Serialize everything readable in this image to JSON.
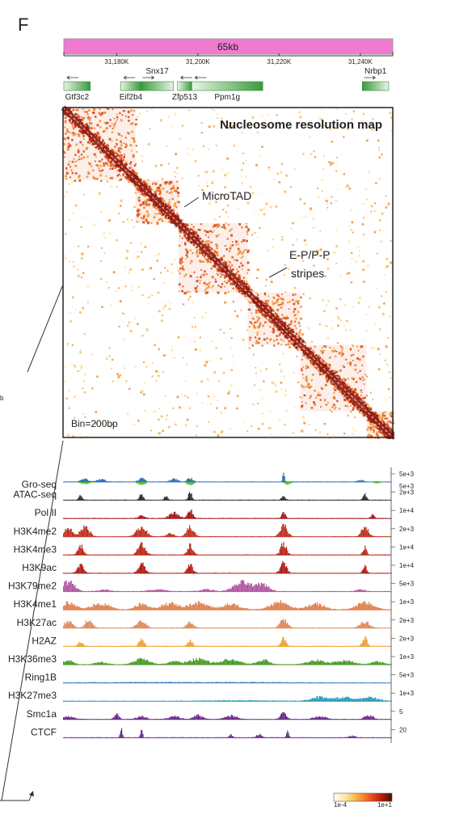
{
  "panel_label": "F",
  "scale_bar": {
    "label": "65kb",
    "color": "#f07ad0"
  },
  "coordinates": {
    "ticks": [
      {
        "label": "31,180K",
        "value": 31180
      },
      {
        "label": "31,200K",
        "value": 31200
      },
      {
        "label": "31,220K",
        "value": 31220
      },
      {
        "label": "31,240K",
        "value": 31240
      }
    ],
    "range_kb": [
      31167,
      31248
    ]
  },
  "genes": [
    {
      "name": "Gtf3c2",
      "start": 31167,
      "end": 31173.5,
      "strand": "-"
    },
    {
      "name": "Eif2b4",
      "start": 31181,
      "end": 31186,
      "strand": "-"
    },
    {
      "name": "Snx17",
      "start": 31186,
      "end": 31194,
      "strand": "+"
    },
    {
      "name": "Zfp513",
      "start": 31195,
      "end": 31198.5,
      "strand": "-"
    },
    {
      "name": "Ppm1g",
      "start": 31198.5,
      "end": 31216,
      "strand": "-"
    },
    {
      "name": "Nrbp1",
      "start": 31240.5,
      "end": 31247,
      "strand": "+"
    }
  ],
  "heatmap": {
    "title": "Nucleosome resolution map",
    "bin_label": "Bin=200bp",
    "annotations": [
      {
        "text": "MicroTAD"
      },
      {
        "text": "E-P/P-P"
      },
      {
        "text": "stripes"
      }
    ],
    "side_label": "b",
    "colorbar": {
      "min_label": "1e-4",
      "max_label": "1e+1",
      "colors": [
        "#ffffff",
        "#fde8a0",
        "#f9b040",
        "#f06020",
        "#c02010",
        "#4a0808"
      ]
    }
  },
  "chart_data": {
    "type": "area",
    "x_range_kb": [
      31167,
      31248
    ],
    "tracks": [
      {
        "name": "Gro-seq",
        "scale": "5e+3",
        "scale2": "5e+3",
        "color": "#2a6ab8",
        "color2": "#4cb83a",
        "peaks": [
          [
            31172,
            0.25,
            1.2
          ],
          [
            31176,
            0.2,
            1.5
          ],
          [
            31186,
            0.3,
            1.0
          ],
          [
            31194,
            0.25,
            1.2
          ],
          [
            31198,
            0.3,
            1.0
          ],
          [
            31221,
            1.0,
            0.3
          ],
          [
            31240,
            0.15,
            1.0
          ]
        ],
        "neg_peaks": [
          [
            31172,
            0.35,
            1.5
          ],
          [
            31186,
            0.45,
            1.2
          ],
          [
            31198,
            0.55,
            1.0
          ],
          [
            31222,
            0.35,
            1.0
          ],
          [
            31244,
            0.2,
            1.0
          ]
        ]
      },
      {
        "name": "ATAC-seq",
        "scale": "2e+3",
        "color": "#2b2b35",
        "peaks": [
          [
            31171,
            0.35,
            0.6
          ],
          [
            31186,
            0.55,
            0.6
          ],
          [
            31192,
            0.3,
            0.6
          ],
          [
            31198,
            0.7,
            0.6
          ],
          [
            31221,
            0.4,
            0.6
          ],
          [
            31241,
            0.45,
            0.6
          ]
        ]
      },
      {
        "name": "Pol II",
        "scale": "1e+4",
        "color": "#a0181a",
        "peaks": [
          [
            31186,
            0.25,
            1.0
          ],
          [
            31194,
            0.5,
            1.5
          ],
          [
            31198,
            0.8,
            0.8
          ],
          [
            31221,
            0.5,
            0.6
          ],
          [
            31243,
            0.35,
            0.6
          ]
        ]
      },
      {
        "name": "H3K4me2",
        "scale": "2e+3",
        "color": "#c03020",
        "peaks": [
          [
            31168,
            0.8,
            1.2
          ],
          [
            31172,
            0.9,
            1.5
          ],
          [
            31186,
            0.9,
            1.6
          ],
          [
            31193,
            0.3,
            1.2
          ],
          [
            31198,
            0.85,
            1.2
          ],
          [
            31221,
            1.0,
            1.2
          ],
          [
            31241,
            0.8,
            1.2
          ]
        ]
      },
      {
        "name": "H3K4me3",
        "scale": "1e+4",
        "color": "#b82818",
        "peaks": [
          [
            31171,
            0.85,
            0.9
          ],
          [
            31186,
            0.95,
            1.2
          ],
          [
            31198,
            0.85,
            0.9
          ],
          [
            31221,
            1.0,
            1.0
          ],
          [
            31241,
            0.7,
            0.6
          ]
        ]
      },
      {
        "name": "H3K9ac",
        "scale": "1e+4",
        "color": "#b01c18",
        "peaks": [
          [
            31171,
            0.75,
            1.0
          ],
          [
            31186,
            0.95,
            1.1
          ],
          [
            31198,
            0.75,
            0.9
          ],
          [
            31221,
            0.95,
            1.0
          ],
          [
            31241,
            0.6,
            0.6
          ]
        ]
      },
      {
        "name": "H3K79me2",
        "scale": "5e+3",
        "color": "#b058a0",
        "peaks": [
          [
            31168,
            0.9,
            2.0
          ],
          [
            31177,
            0.15,
            2.0
          ],
          [
            31190,
            0.15,
            3.0
          ],
          [
            31202,
            0.2,
            2.0
          ],
          [
            31211,
            0.8,
            3.0
          ],
          [
            31216,
            0.6,
            2.0
          ],
          [
            31240,
            0.15,
            1.5
          ]
        ]
      },
      {
        "name": "H3K4me1",
        "scale": "1e+3",
        "color": "#e08050",
        "peaks": [
          [
            31168,
            0.6,
            2.5
          ],
          [
            31176,
            0.55,
            3.0
          ],
          [
            31186,
            0.5,
            2.0
          ],
          [
            31193,
            0.55,
            3.0
          ],
          [
            31200,
            0.6,
            3.0
          ],
          [
            31208,
            0.5,
            3.0
          ],
          [
            31220,
            0.7,
            3.0
          ],
          [
            31229,
            0.5,
            3.0
          ],
          [
            31241,
            0.6,
            3.0
          ]
        ]
      },
      {
        "name": "H3K27ac",
        "scale": "2e+3",
        "color": "#e08a5a",
        "peaks": [
          [
            31168,
            0.55,
            1.5
          ],
          [
            31173,
            0.7,
            1.2
          ],
          [
            31186,
            0.6,
            1.5
          ],
          [
            31198,
            0.5,
            1.2
          ],
          [
            31221,
            0.8,
            1.2
          ],
          [
            31241,
            0.55,
            1.5
          ]
        ]
      },
      {
        "name": "H2AZ",
        "scale": "2e+3",
        "color": "#f0a030",
        "peaks": [
          [
            31171,
            0.35,
            0.8
          ],
          [
            31186,
            0.7,
            0.8
          ],
          [
            31198,
            0.5,
            0.8
          ],
          [
            31221,
            0.7,
            0.8
          ],
          [
            31241,
            0.75,
            0.8
          ]
        ]
      },
      {
        "name": "H3K36me3",
        "scale": "1e+3",
        "color": "#4a9a2a",
        "peaks": [
          [
            31168,
            0.4,
            1.5
          ],
          [
            31176,
            0.2,
            2.0
          ],
          [
            31186,
            0.5,
            2.5
          ],
          [
            31194,
            0.3,
            2.0
          ],
          [
            31200,
            0.5,
            3.0
          ],
          [
            31208,
            0.45,
            3.0
          ],
          [
            31216,
            0.4,
            2.0
          ],
          [
            31229,
            0.35,
            3.0
          ],
          [
            31236,
            0.35,
            3.0
          ],
          [
            31244,
            0.25,
            2.0
          ]
        ]
      },
      {
        "name": "Ring1B",
        "scale": "5e+3",
        "color": "#3a7fc0",
        "peaks": [
          [
            31200,
            0.05,
            30.0
          ]
        ]
      },
      {
        "name": "H3K27me3",
        "scale": "1e+3",
        "color": "#2a9ab8",
        "peaks": [
          [
            31230,
            0.35,
            3.0
          ],
          [
            31236,
            0.3,
            3.0
          ],
          [
            31242,
            0.3,
            3.0
          ],
          [
            31210,
            0.05,
            10.0
          ]
        ]
      },
      {
        "name": "Smc1a",
        "scale": "5",
        "color": "#6a2a8a",
        "peaks": [
          [
            31168,
            0.25,
            2.0
          ],
          [
            31180,
            0.5,
            0.8
          ],
          [
            31186,
            0.3,
            1.5
          ],
          [
            31194,
            0.25,
            2.0
          ],
          [
            31200,
            0.35,
            1.5
          ],
          [
            31208,
            0.3,
            2.0
          ],
          [
            31221,
            0.55,
            1.0
          ],
          [
            31230,
            0.25,
            2.0
          ],
          [
            31242,
            0.35,
            1.5
          ]
        ]
      },
      {
        "name": "CTCF",
        "scale": "20",
        "color": "#6a2a8a",
        "peaks": [
          [
            31181,
            0.8,
            0.4
          ],
          [
            31186,
            0.6,
            0.4
          ],
          [
            31208,
            0.25,
            0.6
          ],
          [
            31215,
            0.3,
            0.8
          ],
          [
            31222,
            0.75,
            0.4
          ],
          [
            31238,
            0.15,
            1.0
          ]
        ]
      }
    ]
  }
}
